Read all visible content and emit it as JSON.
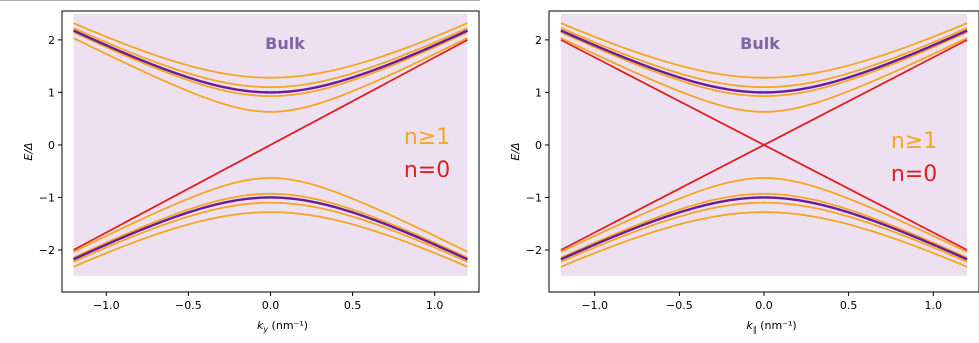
{
  "chart_data": [
    {
      "type": "line",
      "xlabel": "k_y (nm⁻¹)",
      "xlabel_symbol": "k",
      "xlabel_sub": "y",
      "xlabel_unit": " (nm⁻¹)",
      "ylabel": "E/Δ",
      "xlim": [
        -1.27,
        1.27
      ],
      "ylim": [
        -2.8,
        2.55
      ],
      "xticks": [
        -1.0,
        -0.5,
        0.0,
        0.5,
        1.0
      ],
      "xtick_labels": [
        "−1.0",
        "−0.5",
        "0.0",
        "0.5",
        "1.0"
      ],
      "yticks": [
        -2,
        -1,
        0,
        1,
        2
      ],
      "ytick_labels": [
        "−2",
        "−1",
        "0",
        "1",
        "2"
      ],
      "bulk_region": {
        "label": "Bulk",
        "y_range": [
          -2.5,
          2.5
        ],
        "color": "#ede0f0",
        "label_color": "#8064a8"
      },
      "legend_text": [
        {
          "label": "n≥1",
          "color": "#f5a623"
        },
        {
          "label": "n=0",
          "color": "#e02020"
        }
      ],
      "k_range": [
        -1.2,
        1.2
      ],
      "k_scale": 0.62,
      "bulk_gap": 1.0,
      "bulk_edge_color": "#6a1b9a",
      "subband_gaps": [
        0.63,
        0.93,
        1.1,
        1.28
      ],
      "subband_color": "#f5a623",
      "n0_mode": "single",
      "n0_color": "#e02020",
      "n0_slope": 1.667
    },
    {
      "type": "line",
      "xlabel": "k_∥ (nm⁻¹)",
      "xlabel_symbol": "k",
      "xlabel_sub": "∥",
      "xlabel_unit": " (nm⁻¹)",
      "ylabel": "E/Δ",
      "xlim": [
        -1.27,
        1.27
      ],
      "ylim": [
        -2.8,
        2.55
      ],
      "xticks": [
        -1.0,
        -0.5,
        0.0,
        0.5,
        1.0
      ],
      "xtick_labels": [
        "−1.0",
        "−0.5",
        "0.0",
        "0.5",
        "1.0"
      ],
      "yticks": [
        -2,
        -1,
        0,
        1,
        2
      ],
      "ytick_labels": [
        "−2",
        "−1",
        "0",
        "1",
        "2"
      ],
      "bulk_region": {
        "label": "Bulk",
        "y_range": [
          -2.5,
          2.5
        ],
        "color": "#ede0f0",
        "label_color": "#8064a8"
      },
      "legend_text": [
        {
          "label": "n≥1",
          "color": "#f5a623"
        },
        {
          "label": "n=0",
          "color": "#e02020"
        }
      ],
      "k_range": [
        -1.2,
        1.2
      ],
      "k_scale": 0.62,
      "bulk_gap": 1.0,
      "bulk_edge_color": "#6a1b9a",
      "subband_gaps": [
        0.63,
        0.93,
        1.1,
        1.28
      ],
      "subband_color": "#f5a623",
      "n0_mode": "cross",
      "n0_color": "#e02020",
      "n0_slope": 1.667
    }
  ]
}
